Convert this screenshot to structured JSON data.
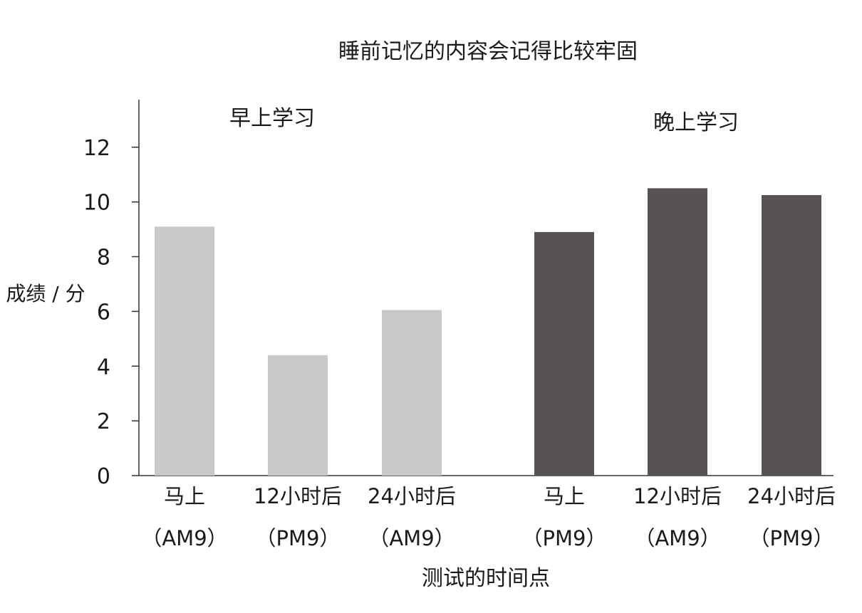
{
  "chart_data": {
    "type": "bar",
    "title": "睡前记忆的内容会记得比较牢固",
    "xlabel": "测试的时间点",
    "ylabel": "成绩 / 分",
    "ylim": [
      0,
      12.8
    ],
    "yticks": [
      0,
      2,
      4,
      6,
      8,
      10,
      12
    ],
    "grid": false,
    "groups": [
      {
        "name": "早上学习",
        "color": "#c8c8c8",
        "categories": [
          {
            "label": "马上",
            "sub": "（AM9）"
          },
          {
            "label": "12小时后",
            "sub": "（PM9）"
          },
          {
            "label": "24小时后",
            "sub": "（AM9）"
          }
        ],
        "values": [
          9.1,
          4.4,
          6.05
        ]
      },
      {
        "name": "晚上学习",
        "color": "#575354",
        "categories": [
          {
            "label": "马上",
            "sub": "（PM9）"
          },
          {
            "label": "12小时后",
            "sub": "（AM9）"
          },
          {
            "label": "24小时后",
            "sub": "（PM9）"
          }
        ],
        "values": [
          8.9,
          10.5,
          10.25
        ]
      }
    ]
  }
}
